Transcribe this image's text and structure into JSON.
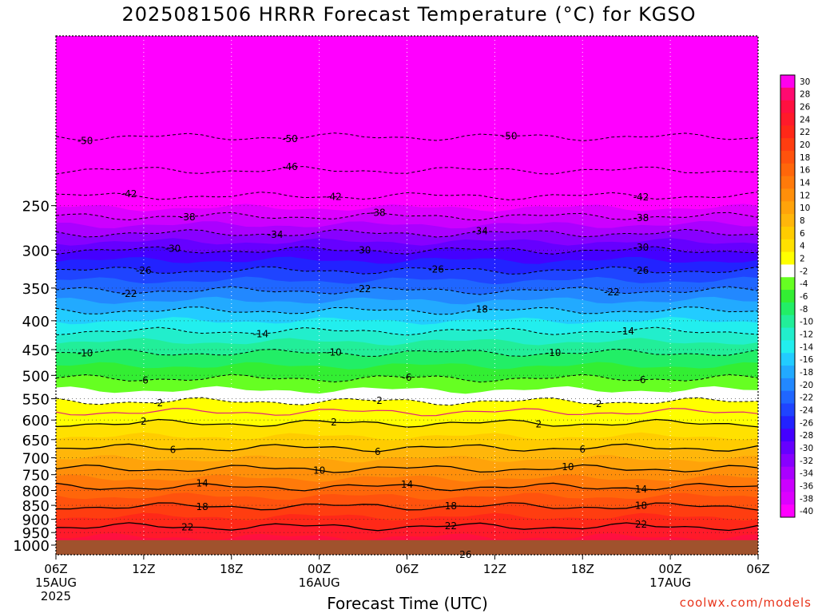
{
  "title": "2025081506 HRRR Forecast Temperature (°C) for KGSO",
  "credit": "coolwx.com/models",
  "chart_data": {
    "type": "heatmap",
    "title": "2025081506 HRRR Forecast Temperature (°C) for KGSO",
    "xlabel": "Forecast Time (UTC)",
    "ylabel": "",
    "x_range_hours": [
      0,
      48
    ],
    "y_range_hpa": [
      1040,
      125
    ],
    "y_scale": "log",
    "grid": true,
    "x_ticks": [
      {
        "hour": 0,
        "lines": [
          "06Z",
          "15AUG",
          "2025"
        ]
      },
      {
        "hour": 6,
        "lines": [
          "12Z"
        ]
      },
      {
        "hour": 12,
        "lines": [
          "18Z"
        ]
      },
      {
        "hour": 18,
        "lines": [
          "00Z",
          "16AUG"
        ]
      },
      {
        "hour": 24,
        "lines": [
          "06Z"
        ]
      },
      {
        "hour": 30,
        "lines": [
          "12Z"
        ]
      },
      {
        "hour": 36,
        "lines": [
          "18Z"
        ]
      },
      {
        "hour": 42,
        "lines": [
          "00Z",
          "17AUG"
        ]
      },
      {
        "hour": 48,
        "lines": [
          "06Z"
        ]
      }
    ],
    "y_ticks": [
      "250",
      "300",
      "350",
      "400",
      "450",
      "500",
      "550",
      "600",
      "650",
      "700",
      "750",
      "800",
      "850",
      "900",
      "950",
      "1000"
    ],
    "y_tick_values": [
      250,
      300,
      350,
      400,
      450,
      500,
      550,
      600,
      650,
      700,
      750,
      800,
      850,
      900,
      950,
      1000
    ],
    "surface_pressure_hpa": 980,
    "colorbar_labels": [
      "30",
      "28",
      "26",
      "24",
      "22",
      "20",
      "18",
      "16",
      "14",
      "12",
      "10",
      "8",
      "6",
      "4",
      "2",
      "-2",
      "-4",
      "-6",
      "-8",
      "-10",
      "-12",
      "-14",
      "-16",
      "-18",
      "-20",
      "-22",
      "-24",
      "-26",
      "-28",
      "-30",
      "-32",
      "-34",
      "-36",
      "-38",
      "-40"
    ],
    "colorbar_colors": [
      "#ff00ee",
      "#ff0a70",
      "#ff1040",
      "#ff1a2a",
      "#ff2818",
      "#ff3d10",
      "#ff520d",
      "#ff660a",
      "#ff7a0a",
      "#ff8f0a",
      "#ffa30a",
      "#ffb60a",
      "#ffcc00",
      "#ffe100",
      "#ffff00",
      "#ffffff",
      "#66ff22",
      "#33ee33",
      "#22ee66",
      "#22ee99",
      "#22eecc",
      "#22eeee",
      "#22ccff",
      "#22aaff",
      "#2288ff",
      "#1f66ff",
      "#1f44ff",
      "#2222ff",
      "#4400ff",
      "#6600ff",
      "#8800ff",
      "#aa00ff",
      "#cc00ff",
      "#dd00ff",
      "#ff00ff"
    ],
    "temperature_profile": [
      {
        "p": 1000,
        "t": 25.5
      },
      {
        "p": 950,
        "t": 23.2
      },
      {
        "p": 900,
        "t": 20.5
      },
      {
        "p": 850,
        "t": 17.8
      },
      {
        "p": 800,
        "t": 14.8
      },
      {
        "p": 750,
        "t": 11.2
      },
      {
        "p": 700,
        "t": 7.8
      },
      {
        "p": 650,
        "t": 4.5
      },
      {
        "p": 600,
        "t": 1.5
      },
      {
        "p": 550,
        "t": -2.5
      },
      {
        "p": 500,
        "t": -6.5
      },
      {
        "p": 450,
        "t": -10.5
      },
      {
        "p": 400,
        "t": -16
      },
      {
        "p": 350,
        "t": -22.5
      },
      {
        "p": 300,
        "t": -30
      },
      {
        "p": 250,
        "t": -40.5
      },
      {
        "p": 200,
        "t": -49
      },
      {
        "p": 150,
        "t": -54
      },
      {
        "p": 125,
        "t": -56
      }
    ],
    "isotherms": [
      {
        "value": -50,
        "style": "dashed",
        "labels": [
          "-50",
          "-50",
          "-50"
        ],
        "label_hours": [
          2,
          16,
          31
        ]
      },
      {
        "value": -46,
        "style": "dashed",
        "labels": [
          "-46"
        ],
        "label_hours": [
          16
        ]
      },
      {
        "value": -42,
        "style": "dashed",
        "labels": [
          "-42",
          "-42",
          "-42"
        ],
        "label_hours": [
          5,
          19,
          40
        ]
      },
      {
        "value": -38,
        "style": "dashed",
        "labels": [
          "-38",
          "-38",
          "-38"
        ],
        "label_hours": [
          9,
          22,
          40
        ]
      },
      {
        "value": -34,
        "style": "dashed",
        "labels": [
          "-34",
          "-34"
        ],
        "label_hours": [
          15,
          29
        ]
      },
      {
        "value": -30,
        "style": "dashed",
        "labels": [
          "-30",
          "-30",
          "-30"
        ],
        "label_hours": [
          8,
          21,
          40
        ]
      },
      {
        "value": -26,
        "style": "dashed",
        "labels": [
          "-26",
          "-26",
          "-26"
        ],
        "label_hours": [
          6,
          26,
          40
        ]
      },
      {
        "value": -22,
        "style": "dashed",
        "labels": [
          "-22",
          "-22",
          "-22"
        ],
        "label_hours": [
          5,
          21,
          38
        ]
      },
      {
        "value": -18,
        "style": "dashed",
        "labels": [
          "-18"
        ],
        "label_hours": [
          29
        ]
      },
      {
        "value": -14,
        "style": "dashed",
        "labels": [
          "-14",
          "-14"
        ],
        "label_hours": [
          14,
          39
        ]
      },
      {
        "value": -10,
        "style": "dashed",
        "labels": [
          "-10",
          "-10",
          "-10"
        ],
        "label_hours": [
          2,
          19,
          34
        ]
      },
      {
        "value": -6,
        "style": "dashed",
        "labels": [
          "-6",
          "-6",
          "-6"
        ],
        "label_hours": [
          6,
          24,
          40
        ]
      },
      {
        "value": -2,
        "style": "dashed",
        "labels": [
          "-2",
          "-2",
          "-2"
        ],
        "label_hours": [
          7,
          22,
          37
        ]
      },
      {
        "value": 0,
        "style": "solid-magenta",
        "labels": [],
        "label_hours": []
      },
      {
        "value": 2,
        "style": "solid",
        "labels": [
          "2",
          "2",
          "2"
        ],
        "label_hours": [
          6,
          19,
          33
        ]
      },
      {
        "value": 6,
        "style": "solid",
        "labels": [
          "6",
          "6",
          "6"
        ],
        "label_hours": [
          8,
          22,
          36
        ]
      },
      {
        "value": 10,
        "style": "solid",
        "labels": [
          "10",
          "10"
        ],
        "label_hours": [
          18,
          35
        ]
      },
      {
        "value": 14,
        "style": "solid",
        "labels": [
          "14",
          "14",
          "14"
        ],
        "label_hours": [
          10,
          24,
          40
        ]
      },
      {
        "value": 18,
        "style": "solid",
        "labels": [
          "18",
          "18",
          "18"
        ],
        "label_hours": [
          10,
          27,
          40
        ]
      },
      {
        "value": 22,
        "style": "solid",
        "labels": [
          "22",
          "22",
          "22"
        ],
        "label_hours": [
          9,
          27,
          40
        ]
      },
      {
        "value": 26,
        "style": "solid",
        "labels": [
          "26"
        ],
        "label_hours": [
          28
        ]
      }
    ]
  },
  "xlabel": "Forecast Time (UTC)"
}
